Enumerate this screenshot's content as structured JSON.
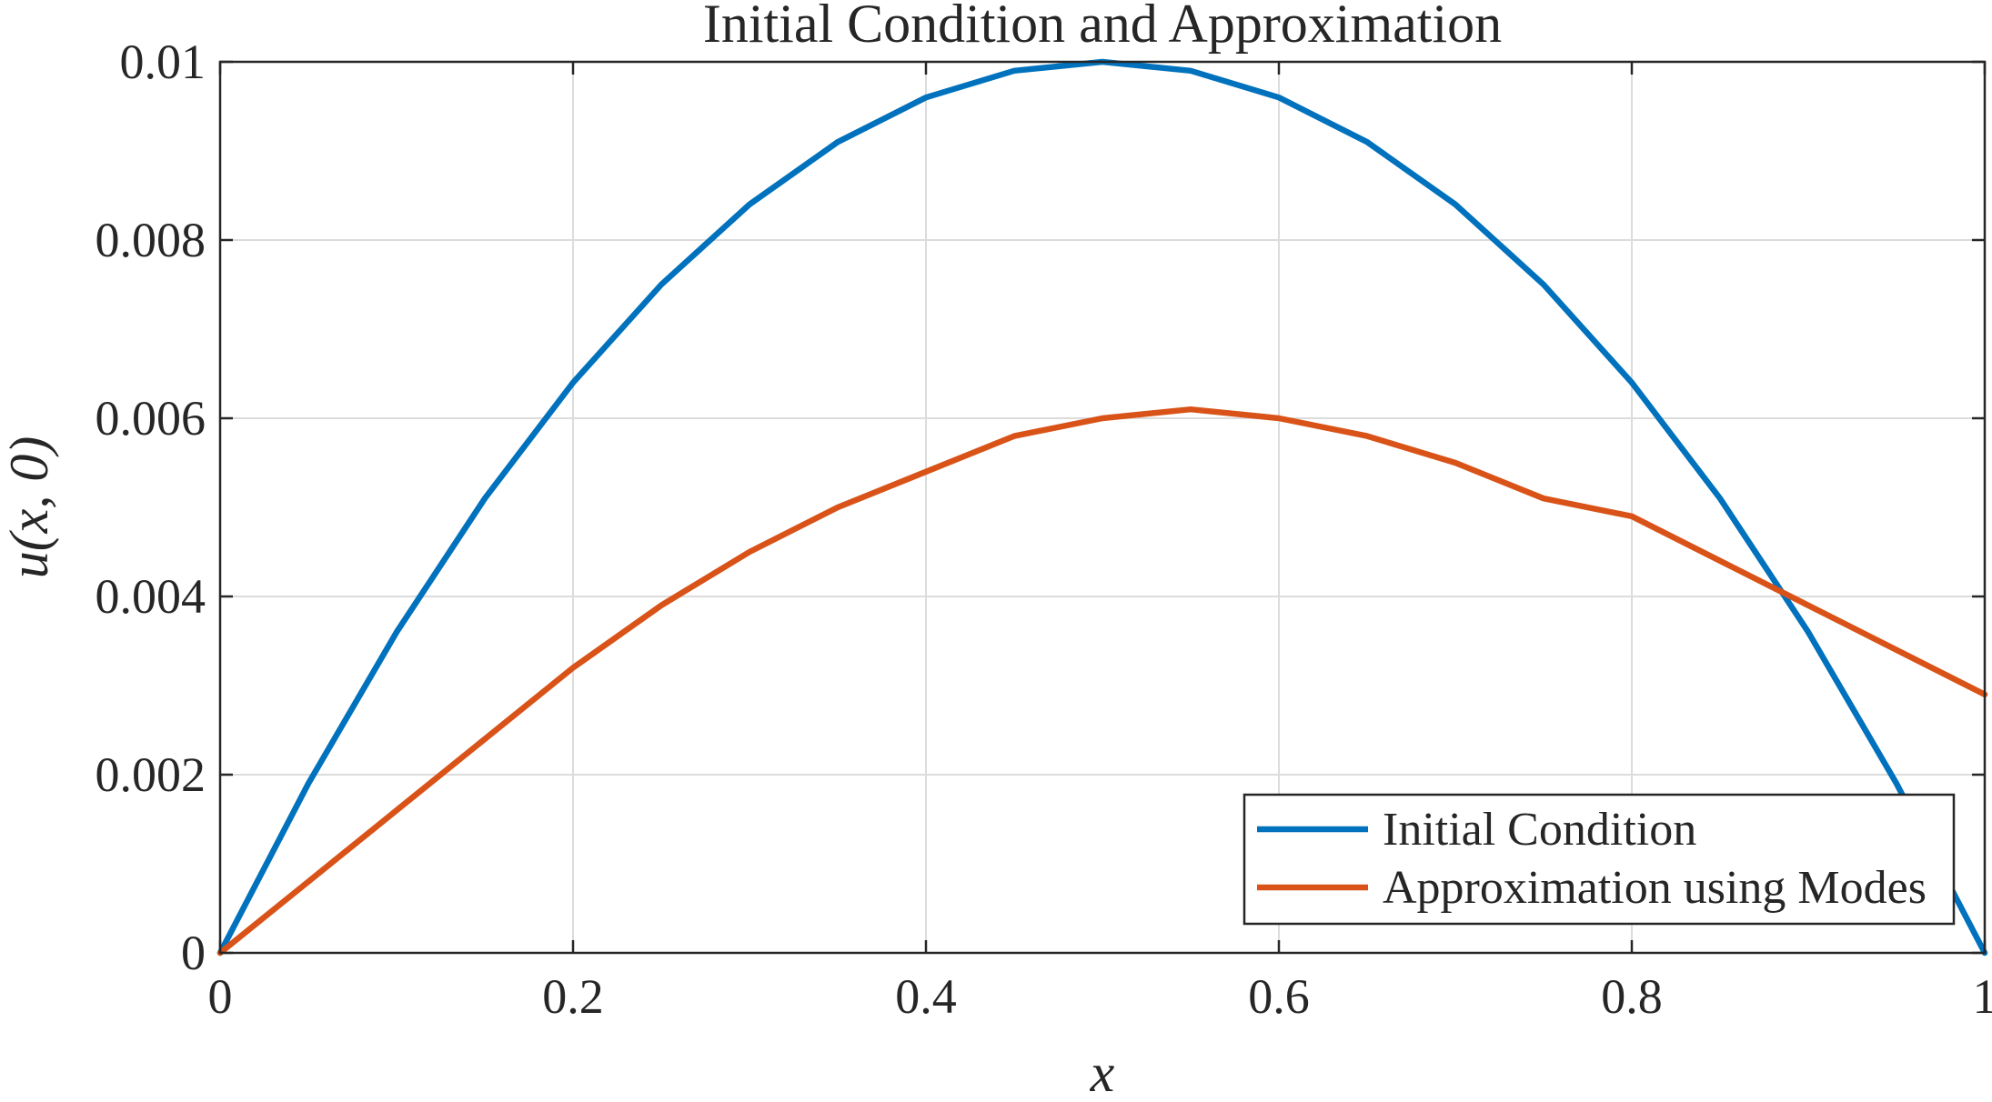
{
  "chart_data": {
    "type": "line",
    "title": "Initial Condition and Approximation",
    "xlabel": "x",
    "ylabel": "u(x, 0)",
    "xlim": [
      0,
      1
    ],
    "ylim": [
      0,
      0.01
    ],
    "x_ticks": [
      0,
      0.2,
      0.4,
      0.6,
      0.8,
      1
    ],
    "x_tick_labels": [
      "0",
      "0.2",
      "0.4",
      "0.6",
      "0.8",
      "1"
    ],
    "y_ticks": [
      0,
      0.002,
      0.004,
      0.006,
      0.008,
      0.01
    ],
    "y_tick_labels": [
      "0",
      "0.002",
      "0.004",
      "0.006",
      "0.008",
      "0.01"
    ],
    "grid": true,
    "legend_position": "bottom-right",
    "x": [
      0,
      0.05,
      0.1,
      0.15,
      0.2,
      0.25,
      0.3,
      0.35,
      0.4,
      0.45,
      0.5,
      0.55,
      0.6,
      0.65,
      0.7,
      0.75,
      0.8,
      0.85,
      0.9,
      0.95,
      1.0
    ],
    "series": [
      {
        "name": "Initial Condition",
        "color": "#0072BD",
        "values": [
          0,
          0.0019,
          0.0036,
          0.0051,
          0.0064,
          0.0075,
          0.0084,
          0.0091,
          0.0096,
          0.0099,
          0.01,
          0.0099,
          0.0096,
          0.0091,
          0.0084,
          0.0075,
          0.0064,
          0.0051,
          0.0036,
          0.0019,
          0
        ]
      },
      {
        "name": "Approximation using Modes",
        "color": "#D95319",
        "values": [
          0,
          0.0008,
          0.0016,
          0.0024,
          0.0032,
          0.0039,
          0.0045,
          0.005,
          0.0054,
          0.0058,
          0.006,
          0.0061,
          0.006,
          0.0058,
          0.0055,
          0.0051,
          0.0049,
          0.0044,
          0.0039,
          0.0034,
          0.0029
        ]
      }
    ]
  }
}
